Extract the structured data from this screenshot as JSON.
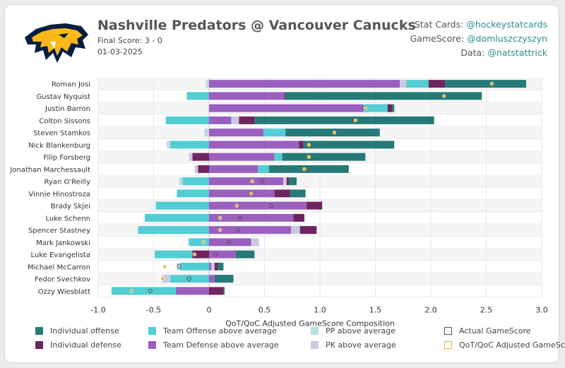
{
  "header": {
    "title": "Nashville Predators @ Vancouver Canucks",
    "final_score": "Final Score: 3 - 0",
    "date": "01-03-2025"
  },
  "credits": [
    {
      "label": "Stat Cards:",
      "handle": "@hockeystatcards"
    },
    {
      "label": "GameScore:",
      "handle": "@domluszczyszyn"
    },
    {
      "label": "Data:",
      "handle": "@natstattrick"
    }
  ],
  "colors": {
    "individual_offense": "#257a78",
    "individual_defense": "#6f2461",
    "team_offense": "#52cdd3",
    "team_defense": "#9b5fc0",
    "pp": "#b9e1e5",
    "pk": "#c9c9df",
    "actual_marker": "#555555",
    "qot_marker": "#e0b830",
    "logo_gold": "#ffb81c",
    "logo_navy": "#041e42"
  },
  "chart_data": {
    "type": "bar",
    "stacked": true,
    "orientation": "horizontal",
    "xlabel": "QoT/QoC Adjusted GameScore Composition",
    "xlim": [
      -1.0,
      3.0
    ],
    "xticks": [
      "-1.0",
      "-0.5",
      "0",
      "0.5",
      "1.0",
      "1.5",
      "2.0",
      "2.5",
      "3.0"
    ],
    "xtick_values": [
      -1.0,
      -0.5,
      0,
      0.5,
      1.0,
      1.5,
      2.0,
      2.5,
      3.0
    ],
    "grid": true,
    "legend_position": "bottom",
    "categories": [
      "Roman Josi",
      "Gustav Nyquist",
      "Justin Barron",
      "Colton Sissons",
      "Steven Stamkos",
      "Nick Blankenburg",
      "Filip Forsberg",
      "Jonathan Marchessault",
      "Ryan O'Reilly",
      "Vinnie Hinostroza",
      "Brady Skjei",
      "Luke Schenn",
      "Spencer Stastney",
      "Mark Jankowski",
      "Luke Evangelista",
      "Michael McCarron",
      "Fedor Svechkov",
      "Ozzy Wiesblatt"
    ],
    "series": [
      {
        "name": "Individual offense",
        "key": "individual_offense",
        "values": [
          0.73,
          1.77,
          0.02,
          1.62,
          0.85,
          0.82,
          0.75,
          0.72,
          0.07,
          0.14,
          0.0,
          0.0,
          0.0,
          0.0,
          0.17,
          0.05,
          0.17,
          0.01
        ]
      },
      {
        "name": "Individual defense",
        "key": "individual_defense",
        "values": [
          0.15,
          0.01,
          0.04,
          0.14,
          0.0,
          0.04,
          -0.15,
          -0.1,
          0.02,
          0.14,
          0.14,
          0.1,
          0.15,
          0.0,
          -0.15,
          0.03,
          0.0,
          0.13
        ]
      },
      {
        "name": "Team Offense above average",
        "key": "team_offense",
        "values": [
          0.2,
          -0.2,
          0.22,
          -0.39,
          0.2,
          -0.35,
          0.07,
          0.1,
          -0.24,
          -0.29,
          -0.48,
          -0.58,
          -0.64,
          -0.18,
          -0.34,
          -0.26,
          -0.35,
          -0.58
        ]
      },
      {
        "name": "Team Defense above average",
        "key": "team_defense",
        "values": [
          1.72,
          0.68,
          1.39,
          0.2,
          0.49,
          0.81,
          0.59,
          0.44,
          0.67,
          0.59,
          0.88,
          0.76,
          0.74,
          0.38,
          0.24,
          0.02,
          0.05,
          -0.3
        ]
      },
      {
        "name": "PP above average",
        "key": "pp",
        "values": [
          -0.03,
          0.0,
          0.0,
          0.0,
          -0.02,
          -0.02,
          0.0,
          0.0,
          -0.03,
          0.0,
          0.0,
          0.0,
          0.0,
          -0.01,
          0.0,
          -0.03,
          -0.01,
          0.0
        ]
      },
      {
        "name": "PK above average",
        "key": "pk",
        "values": [
          0.06,
          0.0,
          0.0,
          0.07,
          -0.02,
          -0.01,
          -0.03,
          -0.03,
          0.03,
          0.0,
          0.0,
          0.0,
          0.08,
          0.07,
          0.0,
          0.03,
          -0.06,
          0.0
        ]
      }
    ],
    "markers": [
      {
        "name": "Actual GameScore",
        "key": "actual",
        "values": [
          2.55,
          2.12,
          1.4,
          1.31,
          1.13,
          0.91,
          0.9,
          0.87,
          0.48,
          0.38,
          0.56,
          0.28,
          0.26,
          0.18,
          0.06,
          -0.27,
          -0.18,
          -0.53
        ]
      },
      {
        "name": "QoT/QoC Adjusted GameScore",
        "key": "qot",
        "values": [
          2.55,
          2.12,
          1.41,
          1.32,
          1.13,
          0.9,
          0.9,
          0.86,
          0.39,
          0.38,
          0.25,
          0.1,
          0.1,
          -0.05,
          -0.13,
          -0.4,
          -0.42,
          -0.7
        ]
      }
    ]
  },
  "legend": [
    {
      "label": "Individual offense",
      "kind": "fill",
      "color_key": "individual_offense"
    },
    {
      "label": "Team Offense above average",
      "kind": "fill",
      "color_key": "team_offense"
    },
    {
      "label": "PP above average",
      "kind": "fill",
      "color_key": "pp"
    },
    {
      "label": "Actual GameScore",
      "kind": "outline",
      "color_key": "actual_marker"
    },
    {
      "label": "Individual defense",
      "kind": "fill",
      "color_key": "individual_defense"
    },
    {
      "label": "Team Defense above average",
      "kind": "fill",
      "color_key": "team_defense"
    },
    {
      "label": "PK above average",
      "kind": "fill",
      "color_key": "pk"
    },
    {
      "label": "QoT/QoC Adjusted GameScore",
      "kind": "outline",
      "color_key": "qot_marker"
    }
  ]
}
